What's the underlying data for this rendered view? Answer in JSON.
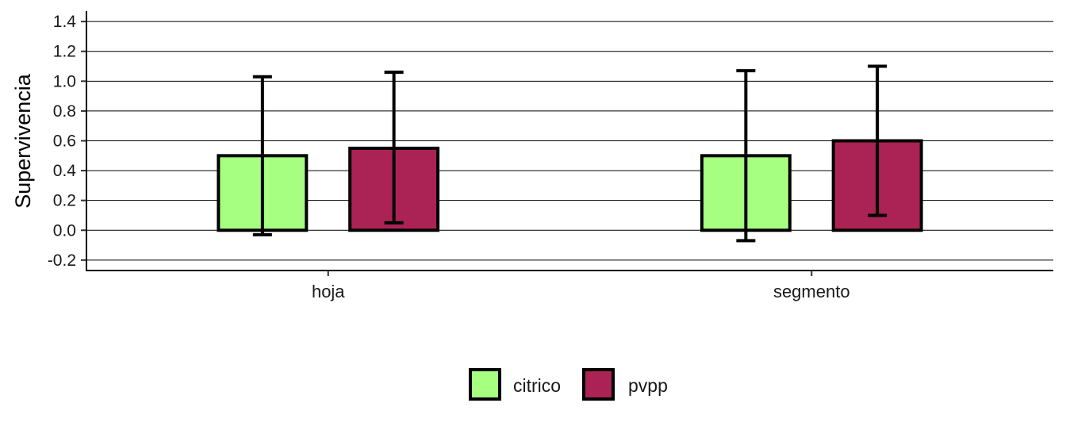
{
  "chart_data": {
    "type": "bar",
    "categories": [
      "hoja",
      "segmento"
    ],
    "series": [
      {
        "name": "citrico",
        "color": "#a6ff80",
        "values": [
          0.5,
          0.5
        ],
        "error_low": [
          -0.03,
          -0.07
        ],
        "error_high": [
          1.03,
          1.07
        ]
      },
      {
        "name": "pvpp",
        "color": "#ab2254",
        "values": [
          0.55,
          0.6
        ],
        "error_low": [
          0.05,
          0.1
        ],
        "error_high": [
          1.06,
          1.1
        ]
      }
    ],
    "xlabel": "",
    "ylabel": "Supervivencia",
    "ylim": [
      -0.27,
      1.47
    ],
    "yticks": [
      "-0.2",
      "0.0",
      "0.2",
      "0.4",
      "0.6",
      "0.8",
      "1.0",
      "1.2",
      "1.4"
    ],
    "grid": "horizontal",
    "legend_position": "bottom"
  }
}
